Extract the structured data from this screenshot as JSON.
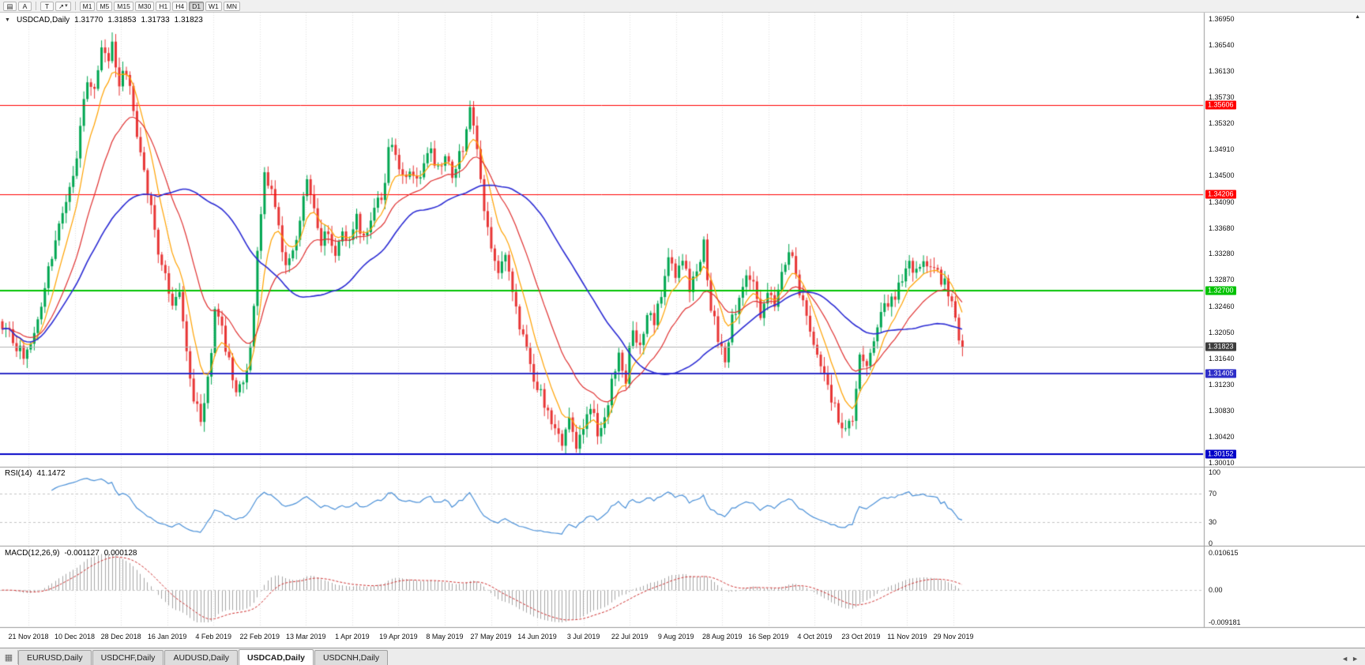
{
  "toolbar": {
    "icons": {
      "menu": "▤",
      "draw": "↗",
      "chevron": "▾",
      "corner": "▲",
      "grid": "▦",
      "left_arrow": "◄",
      "right_arrow": "►"
    },
    "buttons": {
      "annotate": "A",
      "text": "T"
    },
    "timeframes": [
      "M1",
      "M5",
      "M15",
      "M30",
      "H1",
      "H4",
      "D1",
      "W1",
      "MN"
    ],
    "active_timeframe": "D1"
  },
  "chart_data": {
    "type": "candlestick",
    "symbol": "USDCAD",
    "timeframe": "Daily",
    "header": {
      "collapse_icon": "▼",
      "title": "USDCAD,Daily",
      "open": "1.31770",
      "high": "1.31853",
      "low": "1.31733",
      "close": "1.31823"
    },
    "candle_up_color": "#00A651",
    "candle_down_color": "#E83535",
    "y_axis": {
      "ticks": [
        "1.36950",
        "1.36540",
        "1.36130",
        "1.35730",
        "1.35320",
        "1.34910",
        "1.34500",
        "1.34090",
        "1.33680",
        "1.33280",
        "1.32870",
        "1.32460",
        "1.32050",
        "1.31640",
        "1.31230",
        "1.30830",
        "1.30420",
        "1.30010"
      ]
    },
    "x_axis": {
      "dates": [
        "21 Nov 2018",
        "10 Dec 2018",
        "28 Dec 2018",
        "16 Jan 2019",
        "4 Feb 2019",
        "22 Feb 2019",
        "13 Mar 2019",
        "1 Apr 2019",
        "19 Apr 2019",
        "8 May 2019",
        "27 May 2019",
        "14 Jun 2019",
        "3 Jul 2019",
        "22 Jul 2019",
        "9 Aug 2019",
        "28 Aug 2019",
        "16 Sep 2019",
        "4 Oct 2019",
        "23 Oct 2019",
        "11 Nov 2019",
        "29 Nov 2019"
      ]
    },
    "hlines": [
      {
        "price": 1.35606,
        "label": "1.35606",
        "color": "#FF0000",
        "width": 1
      },
      {
        "price": 1.34206,
        "label": "1.34206",
        "color": "#FF0000",
        "width": 1
      },
      {
        "price": 1.327,
        "label": "1.32700",
        "color": "#00C200",
        "width": 2
      },
      {
        "price": 1.31405,
        "label": "1.31405",
        "color": "#2E2EC8",
        "width": 2
      },
      {
        "price": 1.30152,
        "label": "1.30152",
        "color": "#0000C8",
        "width": 2
      }
    ],
    "current_price": {
      "value": 1.31823,
      "label": "1.31823",
      "line_color": "#B4B4B4",
      "label_bg": "#3C3C3C"
    },
    "moving_averages": [
      {
        "name": "fast",
        "period": 8,
        "color": "#FFA200"
      },
      {
        "name": "medium",
        "period": 21,
        "color": "#E03030"
      },
      {
        "name": "slow",
        "period": 45,
        "color": "#2B2BD4"
      }
    ],
    "bars_total": 272,
    "price_path_anchors": [
      [
        0,
        1.322
      ],
      [
        3,
        1.3195
      ],
      [
        6,
        1.3165
      ],
      [
        9,
        1.321
      ],
      [
        12,
        1.3275
      ],
      [
        14,
        1.332
      ],
      [
        17,
        1.3395
      ],
      [
        20,
        1.3445
      ],
      [
        22,
        1.353
      ],
      [
        24,
        1.3605
      ],
      [
        26,
        1.3575
      ],
      [
        28,
        1.3645
      ],
      [
        30,
        1.362
      ],
      [
        31,
        1.3655
      ],
      [
        33,
        1.3595
      ],
      [
        35,
        1.3615
      ],
      [
        37,
        1.3545
      ],
      [
        40,
        1.3455
      ],
      [
        42,
        1.3405
      ],
      [
        44,
        1.3335
      ],
      [
        46,
        1.329
      ],
      [
        48,
        1.324
      ],
      [
        50,
        1.3265
      ],
      [
        52,
        1.317
      ],
      [
        54,
        1.3095
      ],
      [
        56,
        1.307
      ],
      [
        58,
        1.3125
      ],
      [
        60,
        1.3235
      ],
      [
        62,
        1.3215
      ],
      [
        64,
        1.3155
      ],
      [
        66,
        1.3108
      ],
      [
        68,
        1.3135
      ],
      [
        70,
        1.3175
      ],
      [
        72,
        1.333
      ],
      [
        74,
        1.3455
      ],
      [
        76,
        1.3425
      ],
      [
        78,
        1.3365
      ],
      [
        80,
        1.331
      ],
      [
        82,
        1.3335
      ],
      [
        84,
        1.3385
      ],
      [
        86,
        1.344
      ],
      [
        88,
        1.34
      ],
      [
        90,
        1.3345
      ],
      [
        92,
        1.336
      ],
      [
        94,
        1.333
      ],
      [
        96,
        1.337
      ],
      [
        98,
        1.3345
      ],
      [
        100,
        1.338
      ],
      [
        102,
        1.336
      ],
      [
        104,
        1.3385
      ],
      [
        106,
        1.3405
      ],
      [
        108,
        1.344
      ],
      [
        109,
        1.3505
      ],
      [
        111,
        1.348
      ],
      [
        113,
        1.3445
      ],
      [
        115,
        1.3465
      ],
      [
        117,
        1.3435
      ],
      [
        119,
        1.3465
      ],
      [
        121,
        1.349
      ],
      [
        123,
        1.3455
      ],
      [
        125,
        1.348
      ],
      [
        127,
        1.3445
      ],
      [
        129,
        1.348
      ],
      [
        131,
        1.3515
      ],
      [
        132,
        1.356
      ],
      [
        134,
        1.3495
      ],
      [
        136,
        1.3405
      ],
      [
        138,
        1.334
      ],
      [
        140,
        1.3295
      ],
      [
        142,
        1.333
      ],
      [
        144,
        1.3275
      ],
      [
        146,
        1.321
      ],
      [
        148,
        1.3175
      ],
      [
        150,
        1.3135
      ],
      [
        152,
        1.311
      ],
      [
        154,
        1.3085
      ],
      [
        156,
        1.3045
      ],
      [
        158,
        1.303
      ],
      [
        160,
        1.3065
      ],
      [
        162,
        1.3022
      ],
      [
        164,
        1.3055
      ],
      [
        166,
        1.3095
      ],
      [
        168,
        1.3045
      ],
      [
        170,
        1.3075
      ],
      [
        172,
        1.3125
      ],
      [
        174,
        1.3165
      ],
      [
        176,
        1.3135
      ],
      [
        178,
        1.3215
      ],
      [
        180,
        1.3185
      ],
      [
        182,
        1.3235
      ],
      [
        184,
        1.3215
      ],
      [
        186,
        1.3265
      ],
      [
        188,
        1.3325
      ],
      [
        190,
        1.3285
      ],
      [
        192,
        1.3315
      ],
      [
        194,
        1.3275
      ],
      [
        196,
        1.3305
      ],
      [
        198,
        1.334
      ],
      [
        200,
        1.3245
      ],
      [
        202,
        1.3195
      ],
      [
        204,
        1.315
      ],
      [
        206,
        1.3225
      ],
      [
        208,
        1.3255
      ],
      [
        210,
        1.3305
      ],
      [
        212,
        1.3275
      ],
      [
        214,
        1.3235
      ],
      [
        216,
        1.3275
      ],
      [
        218,
        1.3245
      ],
      [
        220,
        1.3295
      ],
      [
        222,
        1.3335
      ],
      [
        224,
        1.3295
      ],
      [
        226,
        1.3245
      ],
      [
        228,
        1.3205
      ],
      [
        230,
        1.3165
      ],
      [
        232,
        1.3135
      ],
      [
        234,
        1.3105
      ],
      [
        236,
        1.307
      ],
      [
        238,
        1.305
      ],
      [
        240,
        1.3062
      ],
      [
        242,
        1.3165
      ],
      [
        244,
        1.3155
      ],
      [
        246,
        1.3195
      ],
      [
        248,
        1.3235
      ],
      [
        250,
        1.3245
      ],
      [
        252,
        1.3265
      ],
      [
        254,
        1.3285
      ],
      [
        256,
        1.3315
      ],
      [
        258,
        1.3295
      ],
      [
        260,
        1.3325
      ],
      [
        262,
        1.3305
      ],
      [
        264,
        1.3295
      ],
      [
        266,
        1.3285
      ],
      [
        268,
        1.3245
      ],
      [
        270,
        1.319
      ],
      [
        271,
        1.3182
      ]
    ],
    "rsi": {
      "label": "RSI(14)",
      "period": 14,
      "value": "41.1472",
      "levels": [
        70,
        30
      ],
      "scale_labels": [
        "100",
        "70",
        "30",
        "0"
      ],
      "color": "#4A90D8"
    },
    "macd": {
      "label": "MACD(12,26,9)",
      "params": [
        12,
        26,
        9
      ],
      "value_macd": "-0.001127",
      "value_signal": "0.000128",
      "range": [
        -0.009181,
        0.010615
      ],
      "scale_labels": [
        "0.010615",
        "0.00",
        "-0.009181"
      ],
      "hist_color": "#A6A6A6",
      "signal_color": "#D03232"
    }
  },
  "tabs": {
    "active": "USDCAD,Daily",
    "items": [
      {
        "label": "EURUSD,Daily"
      },
      {
        "label": "USDCHF,Daily"
      },
      {
        "label": "AUDUSD,Daily"
      },
      {
        "label": "USDCAD,Daily"
      },
      {
        "label": "USDCNH,Daily"
      }
    ]
  }
}
